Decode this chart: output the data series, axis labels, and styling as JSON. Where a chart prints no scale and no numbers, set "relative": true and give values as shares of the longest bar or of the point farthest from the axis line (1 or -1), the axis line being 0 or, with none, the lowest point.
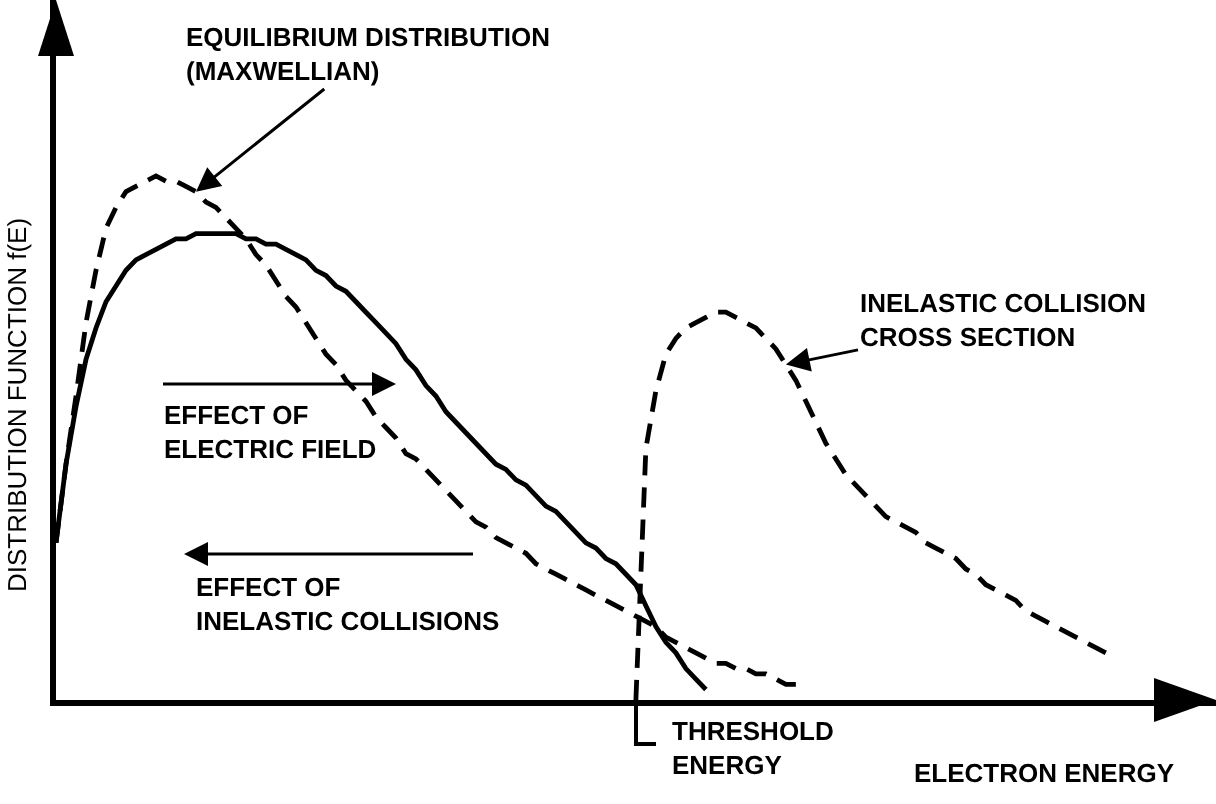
{
  "chart_data": {
    "type": "line",
    "relative": true,
    "xlabel": "ELECTRON ENERGY",
    "ylabel": "DISTRIBUTION FUNCTION f(E)",
    "categories": [
      null,
      null,
      null,
      null,
      null,
      null,
      null,
      null,
      null,
      null,
      null,
      null,
      null,
      null,
      null,
      null,
      null,
      null,
      null,
      null,
      null,
      null,
      null,
      null,
      null,
      null,
      null,
      null,
      null,
      null,
      null,
      null,
      null,
      null,
      null,
      null,
      null,
      null,
      null,
      null,
      null,
      null,
      null,
      null,
      null,
      null,
      null,
      null,
      null,
      null,
      null,
      null,
      null,
      null,
      null,
      null,
      null,
      null,
      null,
      null,
      null,
      null,
      null,
      null,
      null,
      null,
      null,
      null,
      null,
      null,
      null,
      null,
      null,
      null,
      null,
      null,
      null,
      null,
      null,
      null,
      null,
      null,
      null,
      null,
      null,
      null,
      null,
      null,
      null,
      null,
      null,
      null,
      null,
      null,
      null,
      null,
      null,
      null,
      null,
      null,
      null,
      null,
      null,
      null,
      null,
      null
    ],
    "series": [
      {
        "name": "EQUILIBRIUM DISTRIBUTION\n(MAXWELLIAN)",
        "color": "#000000",
        "line_style": "dashed",
        "values": [
          0.3,
          0.45,
          0.58,
          0.72,
          0.82,
          0.9,
          0.94,
          0.97,
          0.98,
          0.99,
          1,
          0.99,
          0.99,
          0.98,
          0.97,
          0.95,
          0.94,
          0.92,
          0.9,
          0.88,
          0.85,
          0.83,
          0.8,
          0.77,
          0.75,
          0.72,
          0.69,
          0.66,
          0.64,
          0.61,
          0.59,
          0.57,
          0.54,
          0.52,
          0.5,
          0.47,
          0.46,
          0.44,
          0.42,
          0.4,
          0.38,
          0.36,
          0.34,
          0.33,
          0.31,
          0.3,
          0.29,
          0.28,
          0.26,
          0.25,
          0.24,
          0.23,
          0.22,
          0.21,
          0.2,
          0.19,
          0.18,
          0.17,
          0.16,
          0.15,
          0.14,
          0.12,
          0.11,
          0.1,
          0.09,
          0.08,
          0.07,
          0.07,
          0.06,
          0.06,
          0.05,
          0.05,
          0.04,
          0.03,
          0.03,
          null,
          null,
          null,
          null,
          null,
          null,
          null,
          null,
          null,
          null,
          null,
          null,
          null,
          null,
          null,
          null,
          null,
          null,
          null,
          null,
          null,
          null,
          null,
          null,
          null,
          null,
          null,
          null,
          null,
          null,
          null
        ]
      },
      {
        "color": "#000000",
        "line_style": "solid",
        "values": [
          0.3,
          0.45,
          0.56,
          0.65,
          0.71,
          0.76,
          0.79,
          0.82,
          0.84,
          0.85,
          0.86,
          0.87,
          0.88,
          0.88,
          0.89,
          0.89,
          0.89,
          0.89,
          0.89,
          0.88,
          0.88,
          0.87,
          0.87,
          0.86,
          0.85,
          0.84,
          0.82,
          0.81,
          0.79,
          0.78,
          0.76,
          0.74,
          0.72,
          0.7,
          0.68,
          0.65,
          0.63,
          0.6,
          0.58,
          0.55,
          0.53,
          0.51,
          0.49,
          0.47,
          0.45,
          0.44,
          0.42,
          0.41,
          0.39,
          0.37,
          0.36,
          0.34,
          0.32,
          0.3,
          0.29,
          0.27,
          0.26,
          0.24,
          0.22,
          0.18,
          0.14,
          0.11,
          0.09,
          0.06,
          0.04,
          0.02,
          null,
          null,
          null,
          null,
          null,
          null,
          null,
          null,
          null,
          null,
          null,
          null,
          null,
          null,
          null,
          null,
          null,
          null,
          null,
          null,
          null,
          null,
          null,
          null,
          null,
          null,
          null,
          null,
          null,
          null,
          null,
          null,
          null,
          null,
          null,
          null,
          null,
          null,
          null,
          null
        ]
      },
      {
        "name": "INELASTIC COLLISION\nCROSS SECTION",
        "color": "#000000",
        "line_style": "dashed",
        "values": [
          null,
          null,
          null,
          null,
          null,
          null,
          null,
          null,
          null,
          null,
          null,
          null,
          null,
          null,
          null,
          null,
          null,
          null,
          null,
          null,
          null,
          null,
          null,
          null,
          null,
          null,
          null,
          null,
          null,
          null,
          null,
          null,
          null,
          null,
          null,
          null,
          null,
          null,
          null,
          null,
          null,
          null,
          null,
          null,
          null,
          null,
          null,
          null,
          null,
          null,
          null,
          null,
          null,
          null,
          null,
          null,
          null,
          null,
          0,
          0.48,
          0.59,
          0.66,
          0.69,
          0.71,
          0.72,
          0.73,
          0.74,
          0.74,
          0.73,
          0.72,
          0.71,
          0.69,
          0.67,
          0.64,
          0.61,
          0.57,
          0.53,
          0.49,
          0.46,
          0.43,
          0.41,
          0.39,
          0.37,
          0.35,
          0.34,
          0.33,
          0.32,
          0.3,
          0.29,
          0.28,
          0.27,
          0.25,
          0.24,
          0.22,
          0.21,
          0.2,
          0.19,
          0.17,
          0.16,
          0.15,
          0.14,
          0.13,
          0.12,
          0.11,
          0.1,
          0.09
        ]
      }
    ],
    "annotations": [
      "EFFECT OF\nELECTRIC FIELD",
      "EFFECT OF\nINELASTIC COLLISIONS",
      "THRESHOLD\nENERGY"
    ],
    "legend": false,
    "marker": "none"
  }
}
